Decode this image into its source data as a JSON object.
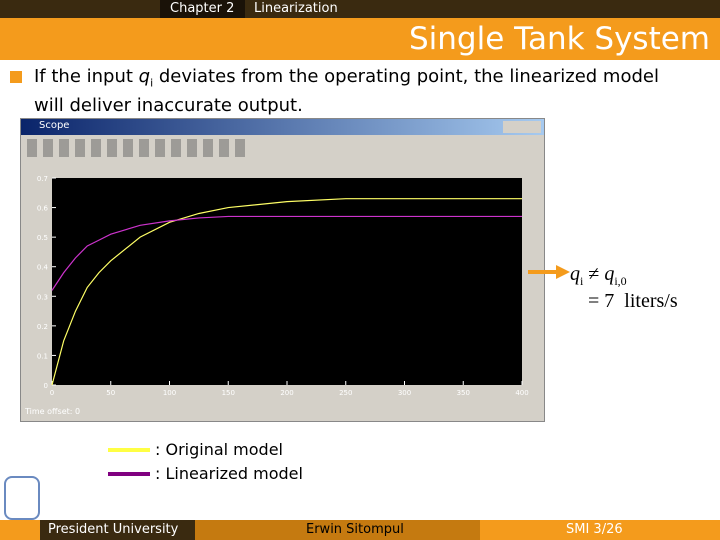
{
  "header": {
    "chapter": "Chapter 2",
    "section": "Linearization",
    "title": "Single Tank System"
  },
  "bullet": {
    "before": "If the input ",
    "symbol": "q",
    "subscript": "i",
    "after": " deviates from the operating point, the linearized model will deliver inaccurate output."
  },
  "scope": {
    "window_title": "Scope",
    "time_offset_label": "Time offset:",
    "time_offset_value": "0"
  },
  "chart_data": {
    "type": "line",
    "x": [
      0,
      10,
      20,
      30,
      40,
      50,
      75,
      100,
      125,
      150,
      200,
      250,
      300,
      350,
      400
    ],
    "series": [
      {
        "name": ": Original model",
        "color": "#ffff66",
        "values": [
          0,
          0.15,
          0.25,
          0.33,
          0.38,
          0.42,
          0.5,
          0.55,
          0.58,
          0.6,
          0.62,
          0.63,
          0.63,
          0.63,
          0.63
        ]
      },
      {
        "name": ": Linearized model",
        "color": "#cc33cc",
        "values": [
          0.32,
          0.38,
          0.43,
          0.47,
          0.49,
          0.51,
          0.54,
          0.555,
          0.565,
          0.57,
          0.57,
          0.57,
          0.57,
          0.57,
          0.57
        ]
      }
    ],
    "xlim": [
      0,
      400
    ],
    "xticks": [
      0,
      50,
      100,
      150,
      200,
      250,
      300,
      350,
      400
    ],
    "ylim": [
      0,
      0.7
    ],
    "yticks": [
      0,
      0.1,
      0.2,
      0.3,
      0.4,
      0.5,
      0.6,
      0.7
    ]
  },
  "equation": {
    "lhs": "q",
    "lhs_sub": "i",
    "op": "≠",
    "rhs": "q",
    "rhs_sub": "i,0",
    "line2": "= 7  liters/s"
  },
  "footer": {
    "left": "President University",
    "center": "Erwin Sitompul",
    "right": "SMI 3/26"
  }
}
